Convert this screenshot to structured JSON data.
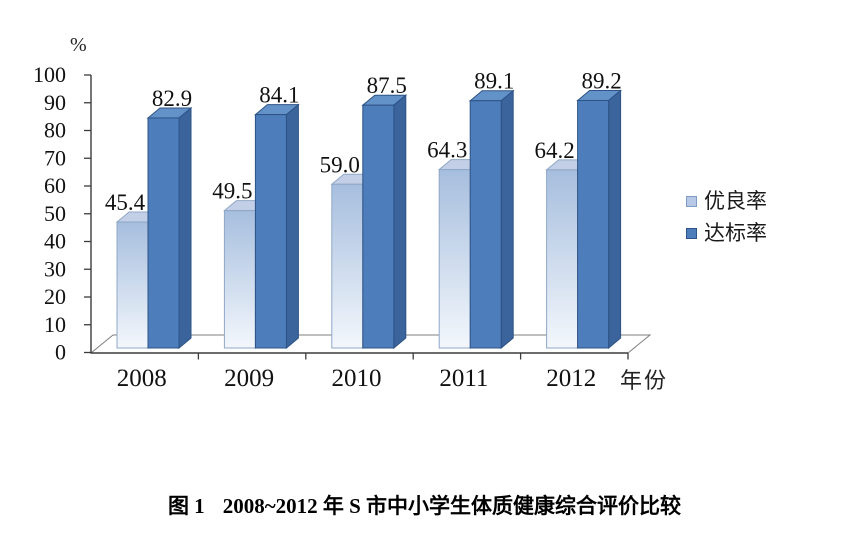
{
  "chart": {
    "y_unit_label": "%",
    "x_axis_label": "年份"
  },
  "chart_data": {
    "type": "bar",
    "style": "3d-column",
    "categories": [
      "2008",
      "2009",
      "2010",
      "2011",
      "2012"
    ],
    "series": [
      {
        "name": "优良率",
        "values": [
          45.4,
          49.5,
          59.0,
          64.3,
          64.2
        ]
      },
      {
        "name": "达标率",
        "values": [
          82.9,
          84.1,
          87.5,
          89.1,
          89.2
        ]
      }
    ],
    "value_labels": true,
    "title": "图 1　2008~2012 年 S 市中小学生体质健康综合评价比较",
    "xlabel": "年份",
    "ylabel": "%",
    "ylim": [
      0,
      100
    ],
    "y_step": 10,
    "grid": false,
    "legend_position": "right"
  },
  "legend": {
    "items": [
      {
        "label": "优良率",
        "color": "#b7c9e6",
        "border": "#7f9cc4"
      },
      {
        "label": "达标率",
        "color": "#4d7ebb",
        "border": "#2e5386"
      }
    ]
  },
  "caption": {
    "label": "图 1",
    "text": "2008~2012 年 S 市中小学生体质健康综合评价比较"
  },
  "colors": {
    "light_front_top": "#a6bede",
    "light_front_bottom": "#f3f7fc",
    "light_side_top": "#8fadd6",
    "light_side_bottom": "#dfe9f5",
    "light_top_face": "#c2cfe6",
    "light_stroke": "#90a7c7",
    "dark_front": "#4d7ebb",
    "dark_side": "#3a649b",
    "dark_top_face": "#6392c8",
    "dark_stroke": "#2e5386",
    "axis": "#3c3c3c",
    "floor_stroke": "#7f7f7f",
    "text": "#111111"
  }
}
